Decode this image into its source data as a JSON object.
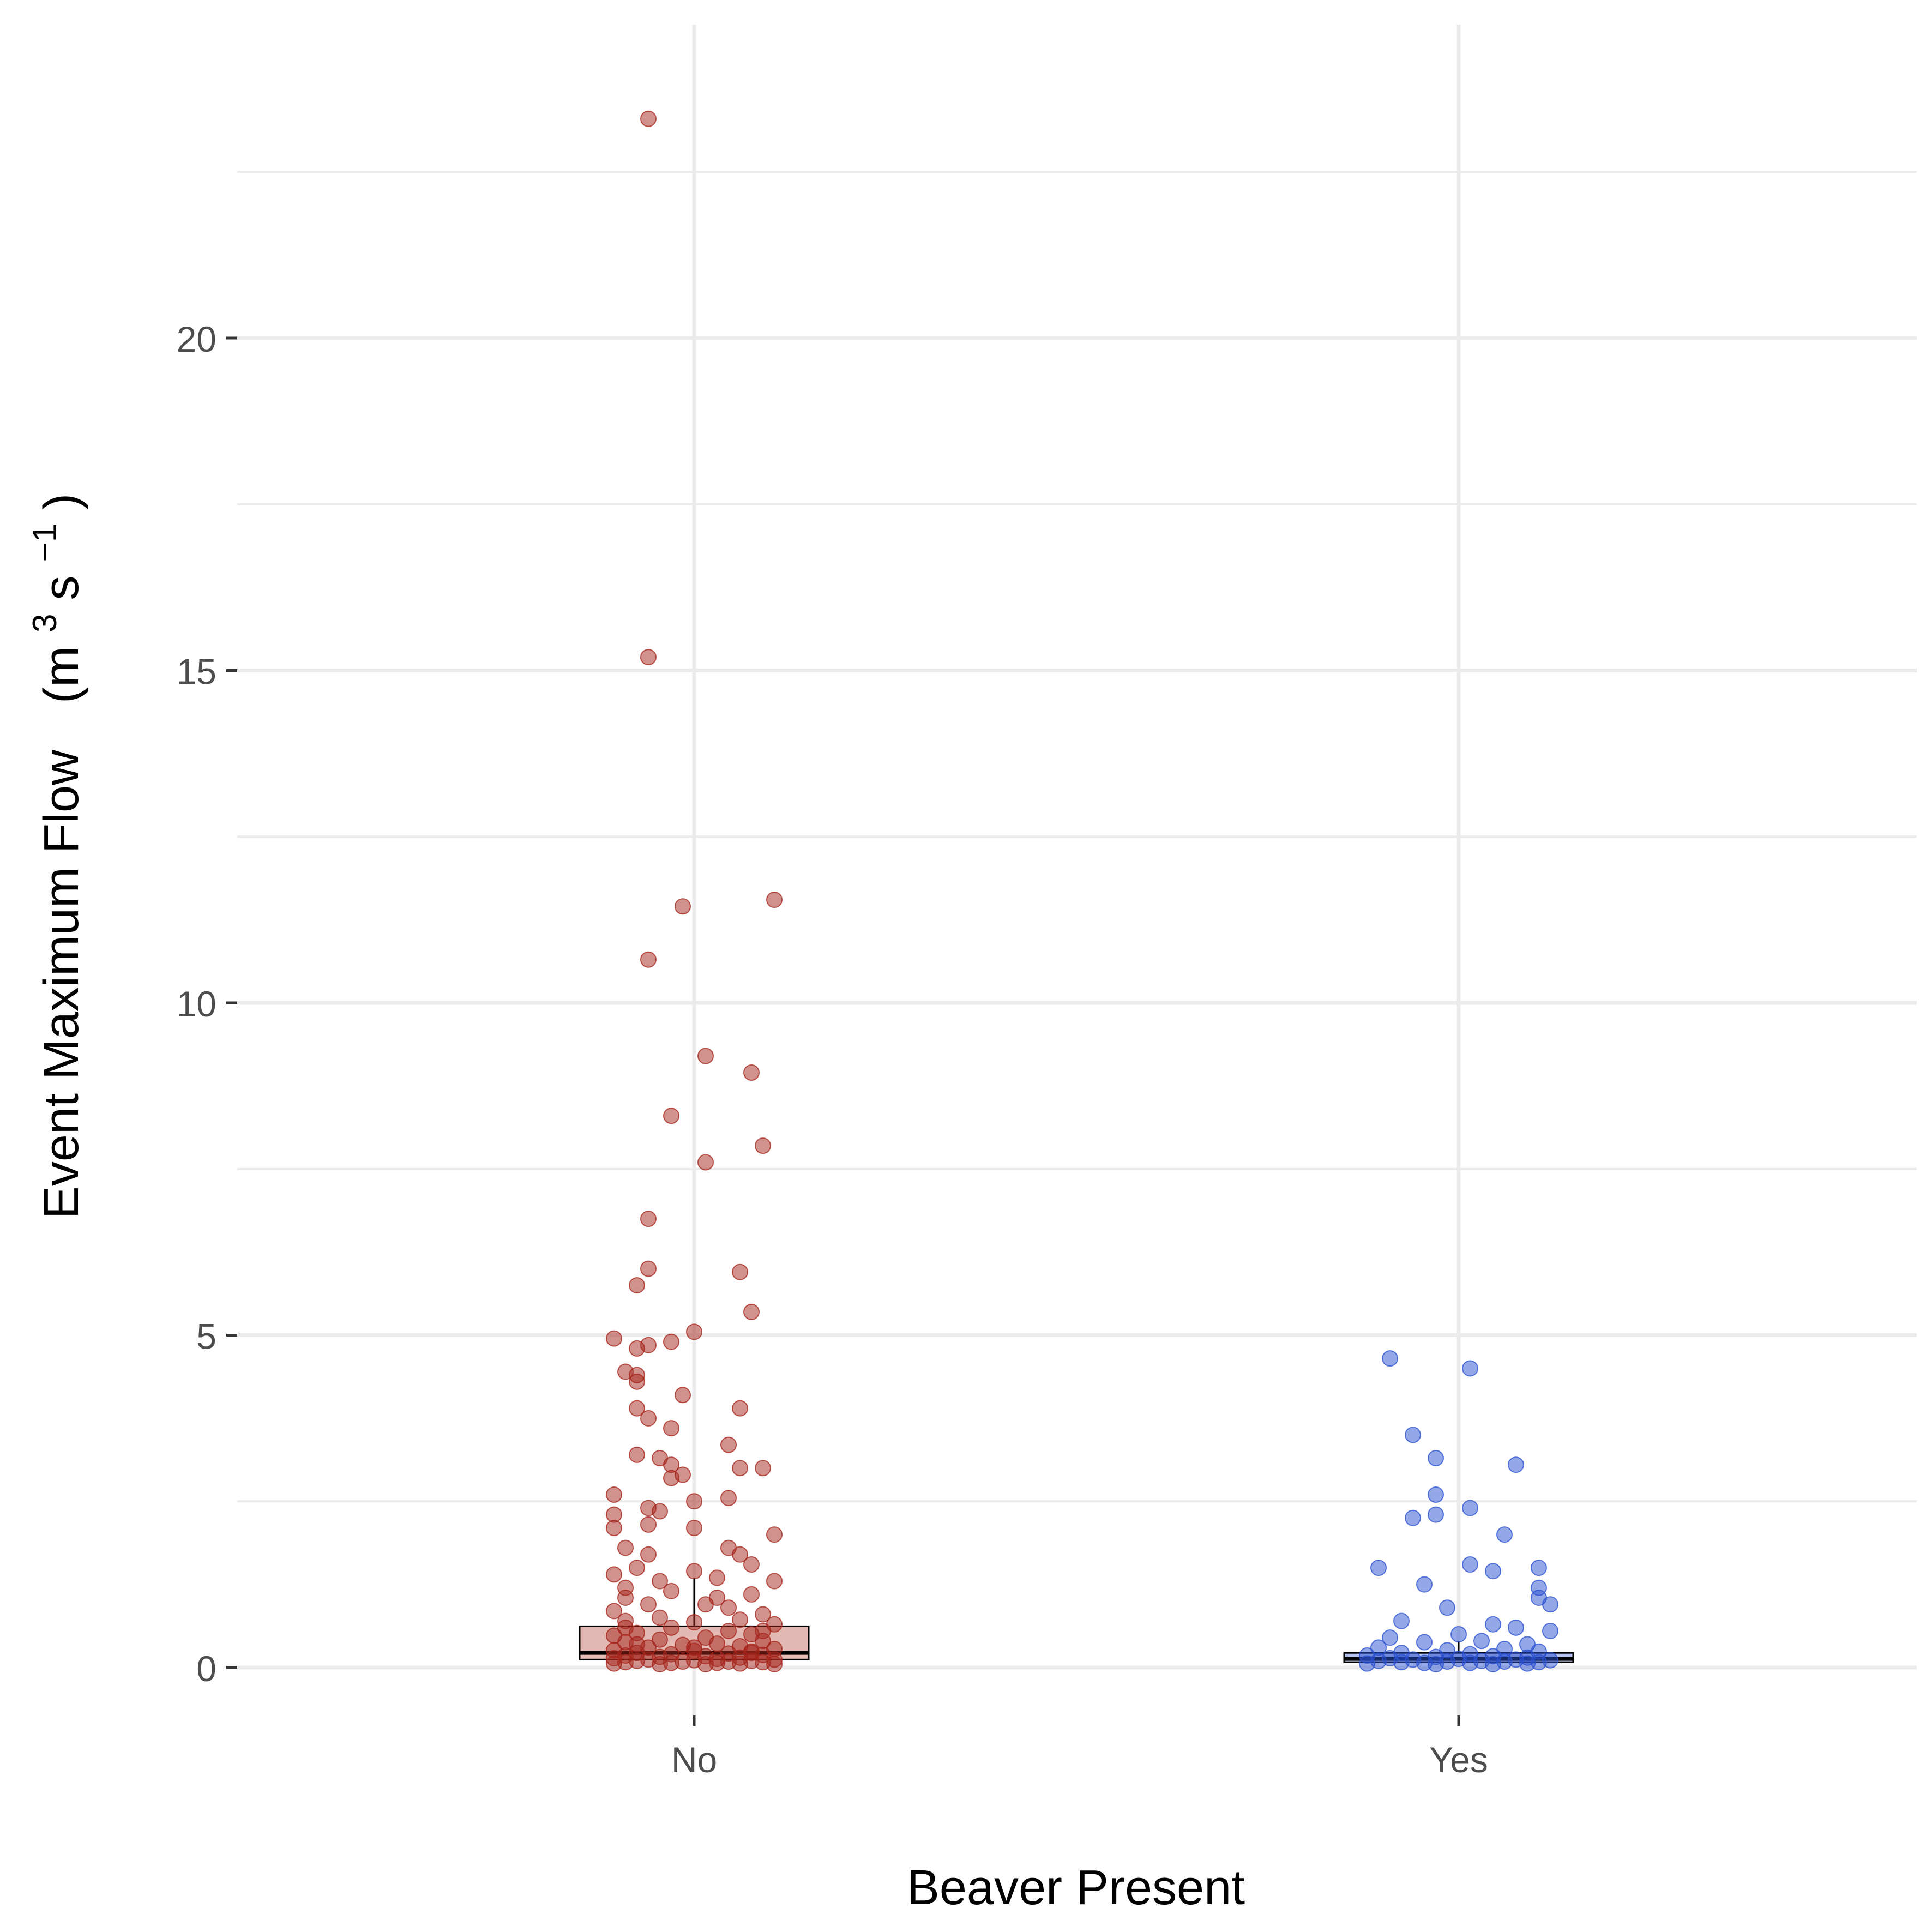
{
  "chart_data": {
    "type": "box",
    "title": "",
    "xlabel": "Beaver Present",
    "ylabel": {
      "main": "Event Maximum Flow",
      "unit_open": "(m",
      "unit_exp1": "3",
      "unit_mid": " s",
      "unit_exp2": "−1",
      "unit_close": ")"
    },
    "categories": [
      "No",
      "Yes"
    ],
    "ylim": [
      -1.05,
      23.9
    ],
    "y_ticks": [
      0,
      5,
      10,
      15,
      20
    ],
    "y_tick_labels": [
      "0",
      "5",
      "10",
      "15",
      "20"
    ],
    "grid": true,
    "legend": "none",
    "colors": {
      "No": {
        "point": "#a4231a",
        "box_fill": "#e3b9b4"
      },
      "Yes": {
        "point": "#2a4fd0",
        "box_fill": "#b8c4ee"
      },
      "gridline": "#ebebeb",
      "box_outline": "#000000"
    },
    "boxes": [
      {
        "category": "No",
        "min": 0.05,
        "q1": 0.12,
        "median": 0.22,
        "q3": 0.62,
        "max": 1.35
      },
      {
        "category": "Yes",
        "min": 0.04,
        "q1": 0.08,
        "median": 0.13,
        "q3": 0.22,
        "max": 0.4
      }
    ],
    "points": {
      "No": [
        [
          -0.04,
          23.3
        ],
        [
          -0.04,
          15.2
        ],
        [
          -0.01,
          11.45
        ],
        [
          0.07,
          11.55
        ],
        [
          -0.04,
          10.65
        ],
        [
          0.01,
          9.2
        ],
        [
          0.05,
          8.95
        ],
        [
          -0.02,
          8.3
        ],
        [
          0.06,
          7.85
        ],
        [
          0.01,
          7.6
        ],
        [
          -0.04,
          6.75
        ],
        [
          -0.04,
          6.0
        ],
        [
          0.04,
          5.95
        ],
        [
          -0.05,
          5.75
        ],
        [
          0.05,
          5.35
        ],
        [
          -0.07,
          4.95
        ],
        [
          0.0,
          5.05
        ],
        [
          -0.05,
          4.8
        ],
        [
          -0.02,
          4.9
        ],
        [
          -0.04,
          4.85
        ],
        [
          -0.06,
          4.45
        ],
        [
          -0.05,
          4.3
        ],
        [
          -0.01,
          4.1
        ],
        [
          -0.05,
          4.4
        ],
        [
          -0.05,
          3.9
        ],
        [
          0.04,
          3.9
        ],
        [
          -0.04,
          3.75
        ],
        [
          -0.02,
          3.6
        ],
        [
          0.03,
          3.35
        ],
        [
          -0.05,
          3.2
        ],
        [
          -0.03,
          3.15
        ],
        [
          -0.02,
          3.05
        ],
        [
          0.04,
          3.0
        ],
        [
          0.06,
          3.0
        ],
        [
          -0.01,
          2.9
        ],
        [
          -0.02,
          2.85
        ],
        [
          -0.07,
          2.6
        ],
        [
          0.0,
          2.5
        ],
        [
          0.03,
          2.55
        ],
        [
          -0.07,
          2.3
        ],
        [
          -0.04,
          2.4
        ],
        [
          -0.03,
          2.35
        ],
        [
          -0.04,
          2.15
        ],
        [
          0.0,
          2.1
        ],
        [
          -0.07,
          2.1
        ],
        [
          0.07,
          2.0
        ],
        [
          -0.06,
          1.8
        ],
        [
          -0.04,
          1.7
        ],
        [
          0.03,
          1.8
        ],
        [
          0.04,
          1.7
        ],
        [
          0.05,
          1.55
        ],
        [
          -0.05,
          1.5
        ],
        [
          0.0,
          1.45
        ],
        [
          -0.07,
          1.4
        ],
        [
          0.02,
          1.35
        ],
        [
          -0.03,
          1.3
        ],
        [
          0.07,
          1.3
        ],
        [
          -0.06,
          1.2
        ],
        [
          -0.02,
          1.15
        ],
        [
          0.05,
          1.1
        ],
        [
          0.02,
          1.05
        ],
        [
          -0.06,
          1.05
        ],
        [
          0.01,
          0.95
        ],
        [
          -0.04,
          0.95
        ],
        [
          0.03,
          0.9
        ],
        [
          -0.07,
          0.85
        ],
        [
          0.06,
          0.8
        ],
        [
          -0.03,
          0.75
        ],
        [
          0.04,
          0.72
        ],
        [
          -0.06,
          0.7
        ],
        [
          0.0,
          0.68
        ],
        [
          0.07,
          0.65
        ],
        [
          -0.02,
          0.6
        ],
        [
          0.03,
          0.55
        ],
        [
          -0.05,
          0.52
        ],
        [
          0.05,
          0.5
        ],
        [
          -0.07,
          0.48
        ],
        [
          0.01,
          0.45
        ],
        [
          -0.03,
          0.42
        ],
        [
          0.06,
          0.4
        ],
        [
          -0.06,
          0.38
        ],
        [
          0.02,
          0.36
        ],
        [
          -0.01,
          0.34
        ],
        [
          0.04,
          0.32
        ],
        [
          -0.04,
          0.3
        ],
        [
          0.07,
          0.28
        ],
        [
          -0.07,
          0.26
        ],
        [
          0.0,
          0.25
        ],
        [
          0.05,
          0.24
        ],
        [
          -0.05,
          0.22
        ],
        [
          0.03,
          0.21
        ],
        [
          -0.02,
          0.2
        ],
        [
          0.06,
          0.19
        ],
        [
          -0.06,
          0.18
        ],
        [
          0.01,
          0.17
        ],
        [
          -0.03,
          0.16
        ],
        [
          0.04,
          0.15
        ],
        [
          -0.07,
          0.14
        ],
        [
          0.02,
          0.13
        ],
        [
          0.07,
          0.12
        ],
        [
          -0.04,
          0.12
        ],
        [
          0.0,
          0.11
        ],
        [
          0.05,
          0.1
        ],
        [
          -0.05,
          0.1
        ],
        [
          0.03,
          0.09
        ],
        [
          -0.01,
          0.09
        ],
        [
          0.06,
          0.08
        ],
        [
          -0.06,
          0.08
        ],
        [
          0.02,
          0.07
        ],
        [
          -0.02,
          0.07
        ],
        [
          0.04,
          0.06
        ],
        [
          -0.07,
          0.06
        ],
        [
          0.07,
          0.05
        ],
        [
          -0.03,
          0.05
        ],
        [
          0.01,
          0.05
        ],
        [
          0.05,
          0.22
        ],
        [
          -0.05,
          0.35
        ],
        [
          0.06,
          0.55
        ],
        [
          -0.06,
          0.6
        ],
        [
          0.0,
          0.3
        ]
      ],
      "Yes": [
        [
          -0.06,
          4.65
        ],
        [
          0.01,
          4.5
        ],
        [
          -0.04,
          3.5
        ],
        [
          -0.02,
          3.15
        ],
        [
          0.05,
          3.05
        ],
        [
          -0.02,
          2.6
        ],
        [
          0.01,
          2.4
        ],
        [
          -0.02,
          2.3
        ],
        [
          -0.04,
          2.25
        ],
        [
          0.04,
          2.0
        ],
        [
          0.01,
          1.55
        ],
        [
          0.03,
          1.45
        ],
        [
          -0.07,
          1.5
        ],
        [
          0.07,
          1.5
        ],
        [
          -0.03,
          1.25
        ],
        [
          0.07,
          1.2
        ],
        [
          0.07,
          1.05
        ],
        [
          0.08,
          0.95
        ],
        [
          -0.01,
          0.9
        ],
        [
          -0.05,
          0.7
        ],
        [
          0.03,
          0.65
        ],
        [
          0.05,
          0.6
        ],
        [
          0.08,
          0.55
        ],
        [
          0.0,
          0.5
        ],
        [
          -0.06,
          0.45
        ],
        [
          0.02,
          0.4
        ],
        [
          -0.03,
          0.38
        ],
        [
          0.06,
          0.35
        ],
        [
          -0.07,
          0.3
        ],
        [
          0.04,
          0.28
        ],
        [
          -0.01,
          0.26
        ],
        [
          0.07,
          0.24
        ],
        [
          -0.05,
          0.22
        ],
        [
          0.01,
          0.2
        ],
        [
          -0.08,
          0.18
        ],
        [
          0.03,
          0.17
        ],
        [
          -0.02,
          0.16
        ],
        [
          0.06,
          0.15
        ],
        [
          -0.06,
          0.14
        ],
        [
          0.0,
          0.13
        ],
        [
          0.05,
          0.12
        ],
        [
          -0.04,
          0.12
        ],
        [
          0.08,
          0.11
        ],
        [
          -0.07,
          0.1
        ],
        [
          0.02,
          0.1
        ],
        [
          -0.01,
          0.09
        ],
        [
          0.04,
          0.09
        ],
        [
          -0.05,
          0.08
        ],
        [
          0.07,
          0.08
        ],
        [
          -0.03,
          0.07
        ],
        [
          0.01,
          0.07
        ],
        [
          0.06,
          0.06
        ],
        [
          -0.08,
          0.06
        ],
        [
          0.03,
          0.05
        ],
        [
          -0.02,
          0.05
        ]
      ]
    }
  }
}
